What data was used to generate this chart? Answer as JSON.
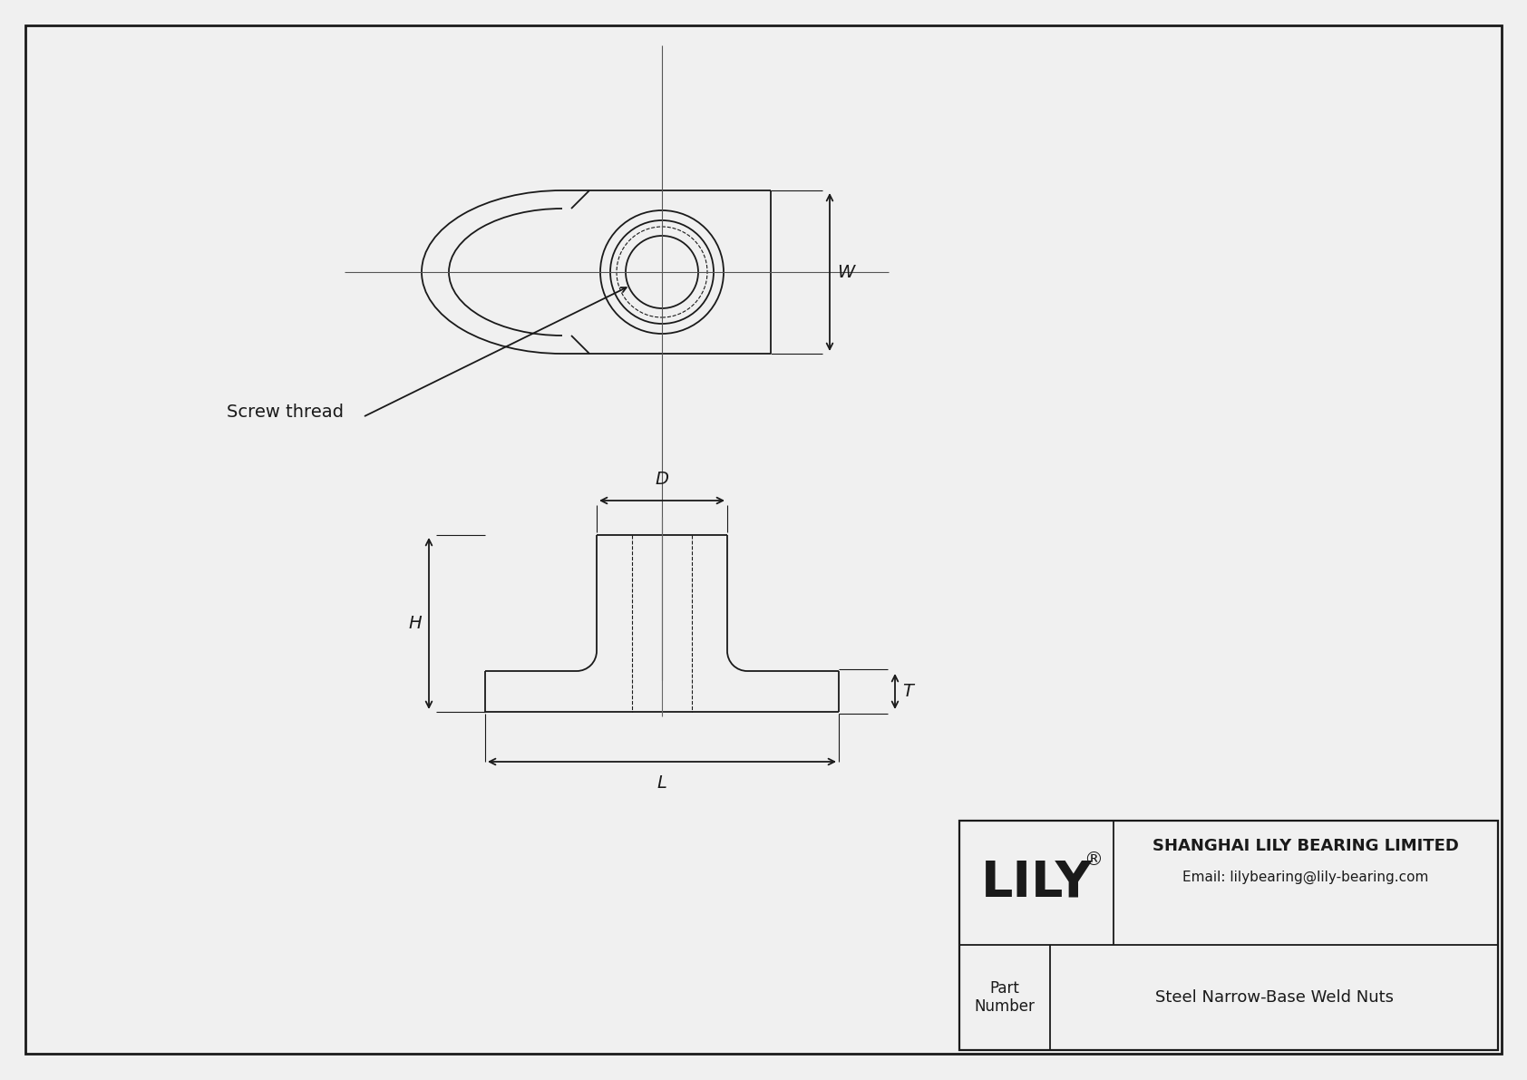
{
  "bg_color": "#f0f0f0",
  "line_color": "#1a1a1a",
  "title_company": "SHANGHAI LILY BEARING LIMITED",
  "title_email": "Email: lilybearing@lily-bearing.com",
  "part_label": "Part\nNumber",
  "part_value": "Steel Narrow-Base Weld Nuts",
  "logo_text": "LILY",
  "logo_sup": "®",
  "label_D": "D",
  "label_W": "W",
  "label_H": "H",
  "label_L": "L",
  "label_T": "T",
  "annotation": "Screw thread",
  "lw": 1.3,
  "thin_lw": 0.8,
  "note_fontsize": 14,
  "dim_fontsize": 14
}
